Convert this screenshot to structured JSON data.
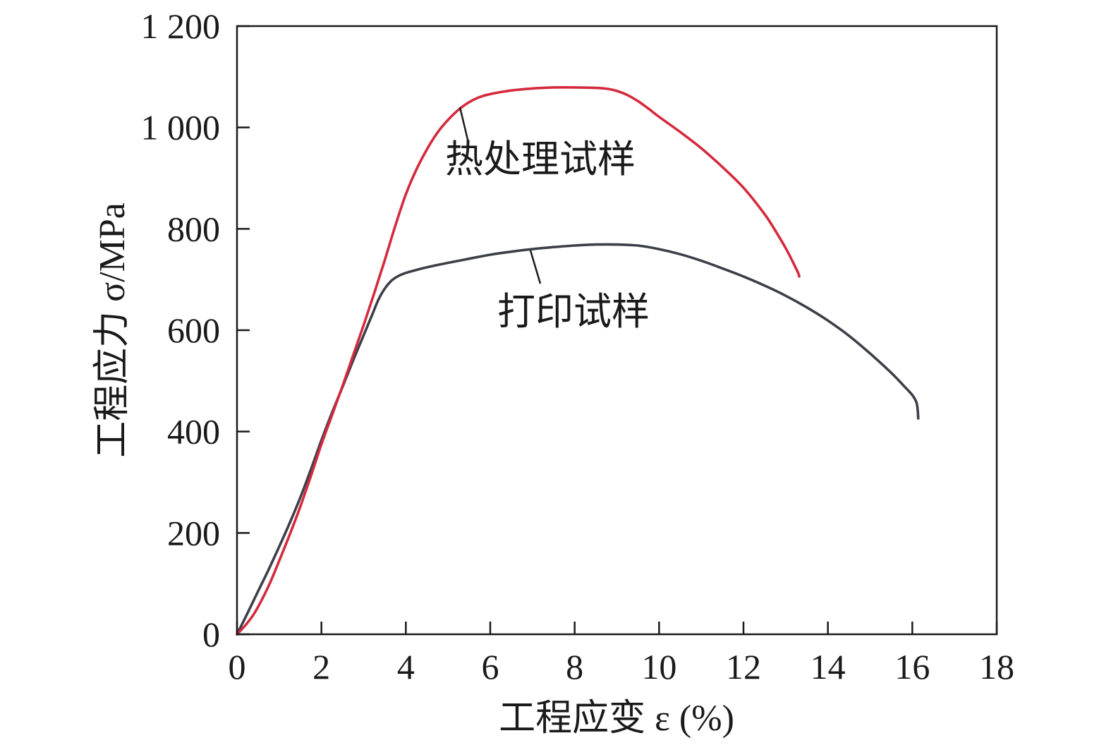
{
  "chart_data": {
    "type": "line",
    "xlabel": "工程应变 ε (%)",
    "ylabel": "工程应力 σ/MPa",
    "xlim": [
      0,
      18
    ],
    "ylim": [
      0,
      1200
    ],
    "grid": false,
    "xticks": [
      0,
      2,
      4,
      6,
      8,
      10,
      12,
      14,
      16,
      18
    ],
    "xtick_labels": [
      "0",
      "2",
      "4",
      "6",
      "8",
      "10",
      "12",
      "14",
      "16",
      "18"
    ],
    "yticks": [
      0,
      200,
      400,
      600,
      800,
      1000,
      1200
    ],
    "ytick_labels": [
      "0",
      "200",
      "400",
      "600",
      "800",
      "1 000",
      "1 200"
    ],
    "series": [
      {
        "name": "热处理试样",
        "color": "#d42a3d",
        "points": [
          [
            0,
            0
          ],
          [
            0.2,
            18
          ],
          [
            0.4,
            40
          ],
          [
            0.6,
            70
          ],
          [
            0.8,
            105
          ],
          [
            1.0,
            145
          ],
          [
            1.25,
            197
          ],
          [
            1.5,
            252
          ],
          [
            1.75,
            312
          ],
          [
            2.0,
            375
          ],
          [
            2.25,
            432
          ],
          [
            2.5,
            490
          ],
          [
            2.75,
            550
          ],
          [
            3.0,
            610
          ],
          [
            3.25,
            673
          ],
          [
            3.5,
            738
          ],
          [
            3.75,
            806
          ],
          [
            4.0,
            868
          ],
          [
            4.25,
            917
          ],
          [
            4.5,
            957
          ],
          [
            4.75,
            990
          ],
          [
            5.0,
            1015
          ],
          [
            5.25,
            1035
          ],
          [
            5.5,
            1050
          ],
          [
            5.75,
            1060
          ],
          [
            6.0,
            1066
          ],
          [
            6.5,
            1073
          ],
          [
            7.0,
            1077
          ],
          [
            7.5,
            1079
          ],
          [
            8.0,
            1079
          ],
          [
            8.5,
            1078
          ],
          [
            8.8,
            1076
          ],
          [
            9.0,
            1072
          ],
          [
            9.25,
            1064
          ],
          [
            9.5,
            1052
          ],
          [
            9.75,
            1037
          ],
          [
            10.0,
            1021
          ],
          [
            10.5,
            991
          ],
          [
            11.0,
            959
          ],
          [
            11.5,
            922
          ],
          [
            12.0,
            881
          ],
          [
            12.5,
            829
          ],
          [
            12.75,
            797
          ],
          [
            13.0,
            762
          ],
          [
            13.15,
            738
          ],
          [
            13.25,
            721
          ],
          [
            13.3,
            712
          ],
          [
            13.32,
            706
          ]
        ]
      },
      {
        "name": "打印试样",
        "color": "#3c3f48",
        "points": [
          [
            0,
            0
          ],
          [
            0.25,
            42
          ],
          [
            0.5,
            85
          ],
          [
            0.75,
            128
          ],
          [
            1.0,
            173
          ],
          [
            1.25,
            220
          ],
          [
            1.5,
            270
          ],
          [
            1.75,
            325
          ],
          [
            2.0,
            383
          ],
          [
            2.25,
            437
          ],
          [
            2.5,
            488
          ],
          [
            2.75,
            540
          ],
          [
            3.0,
            590
          ],
          [
            3.2,
            630
          ],
          [
            3.35,
            660
          ],
          [
            3.5,
            682
          ],
          [
            3.65,
            697
          ],
          [
            3.8,
            706
          ],
          [
            4.0,
            713
          ],
          [
            4.3,
            720
          ],
          [
            4.6,
            726
          ],
          [
            5.0,
            733
          ],
          [
            5.5,
            741
          ],
          [
            6.0,
            749
          ],
          [
            6.5,
            755
          ],
          [
            7.0,
            760
          ],
          [
            7.5,
            764
          ],
          [
            8.0,
            767
          ],
          [
            8.5,
            769
          ],
          [
            9.0,
            769
          ],
          [
            9.5,
            767
          ],
          [
            10.0,
            760
          ],
          [
            10.5,
            750
          ],
          [
            11.0,
            737
          ],
          [
            11.5,
            722
          ],
          [
            12.0,
            706
          ],
          [
            12.5,
            688
          ],
          [
            13.0,
            668
          ],
          [
            13.5,
            645
          ],
          [
            14.0,
            619
          ],
          [
            14.5,
            589
          ],
          [
            15.0,
            554
          ],
          [
            15.5,
            516
          ],
          [
            15.8,
            490
          ],
          [
            16.0,
            472
          ],
          [
            16.1,
            457
          ],
          [
            16.13,
            440
          ],
          [
            16.14,
            426
          ]
        ]
      }
    ]
  }
}
